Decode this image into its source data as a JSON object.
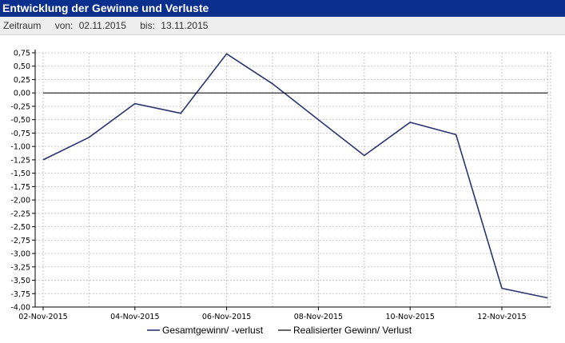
{
  "header": {
    "title": "Entwicklung der Gewinne und Verluste"
  },
  "period": {
    "label": "Zeitraum",
    "from_label": "von:",
    "from_value": "02.11.2015",
    "to_label": "bis:",
    "to_value": "13.11.2015"
  },
  "colors": {
    "header_bg": "#0b2f8c",
    "series_total": "#2a3470",
    "series_realized": "#000000"
  },
  "chart_data": {
    "type": "line",
    "title": "",
    "xlabel": "",
    "ylabel": "",
    "ylim": [
      -4.0,
      0.75
    ],
    "y_ticks": [
      "0,75",
      "0,50",
      "0,25",
      "0,00",
      "-0,25",
      "-0,50",
      "-0,75",
      "-1,00",
      "-1,25",
      "-1,50",
      "-1,75",
      "-2,00",
      "-2,25",
      "-2,50",
      "-2,75",
      "-3,00",
      "-3,25",
      "-3,50",
      "-3,75",
      "-4,00"
    ],
    "x_ticks": [
      "02-Nov-2015",
      "04-Nov-2015",
      "06-Nov-2015",
      "08-Nov-2015",
      "10-Nov-2015",
      "12-Nov-2015"
    ],
    "x": [
      "2015-11-02",
      "2015-11-03",
      "2015-11-04",
      "2015-11-05",
      "2015-11-06",
      "2015-11-07",
      "2015-11-08",
      "2015-11-09",
      "2015-11-10",
      "2015-11-11",
      "2015-11-12",
      "2015-11-13"
    ],
    "series": [
      {
        "name": "Gesamtgewinn/ -verlust",
        "values": [
          -1.25,
          -0.83,
          -0.2,
          -0.38,
          0.73,
          0.17,
          -0.5,
          -1.17,
          -0.55,
          -0.78,
          -3.65,
          -3.83
        ]
      },
      {
        "name": "Realisierter Gewinn/ Verlust",
        "values": [
          0,
          0,
          0,
          0,
          0,
          0,
          0,
          0,
          0,
          0,
          0,
          0
        ]
      }
    ],
    "grid": true,
    "legend": "bottom"
  }
}
